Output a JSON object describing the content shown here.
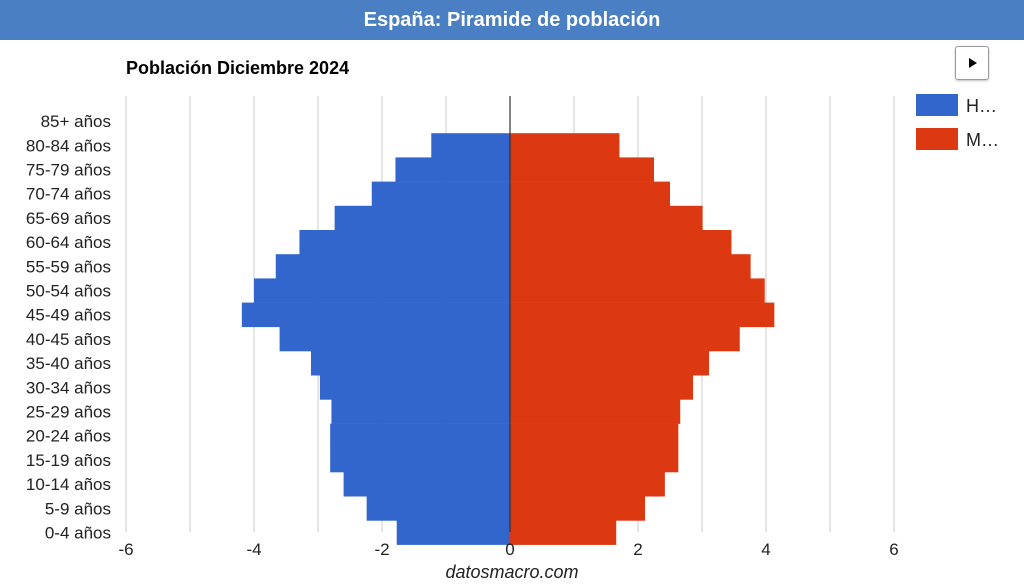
{
  "header": {
    "title": "España: Piramide de población"
  },
  "controls": {
    "play_icon": "play-icon"
  },
  "footer": {
    "watermark": "datosmacro.com"
  },
  "colors": {
    "header_bg": "#4a7fc4",
    "hombres": "#3366cc",
    "mujeres": "#dc3912"
  },
  "chart_data": {
    "type": "bar",
    "orientation": "horizontal",
    "title": "Población Diciembre 2024",
    "categories": [
      "85+ años",
      "80-84 años",
      "75-79 años",
      "70-74 años",
      "65-69 años",
      "60-64 años",
      "55-59 años",
      "50-54 años",
      "45-49 años",
      "40-45 años",
      "35-40 años",
      "30-34 años",
      "25-29 años",
      "20-24 años",
      "15-19 años",
      "10-14 años",
      "5-9 años",
      "0-4 años"
    ],
    "series": [
      {
        "name": "H…",
        "color": "#3366cc",
        "values": [
          0,
          -1.23,
          -1.79,
          -2.16,
          -2.74,
          -3.29,
          -3.66,
          -4.0,
          -4.19,
          -3.6,
          -3.11,
          -2.97,
          -2.79,
          -2.81,
          -2.81,
          -2.6,
          -2.24,
          -1.77
        ]
      },
      {
        "name": "M…",
        "color": "#dc3912",
        "values": [
          0,
          1.71,
          2.25,
          2.5,
          3.01,
          3.46,
          3.76,
          3.98,
          4.13,
          3.59,
          3.11,
          2.86,
          2.66,
          2.63,
          2.63,
          2.42,
          2.11,
          1.66
        ]
      }
    ],
    "xlim": [
      -6,
      6
    ],
    "xticks": [
      -6,
      -4,
      -2,
      0,
      2,
      4,
      6
    ],
    "grid": true,
    "legend": "top-right"
  }
}
